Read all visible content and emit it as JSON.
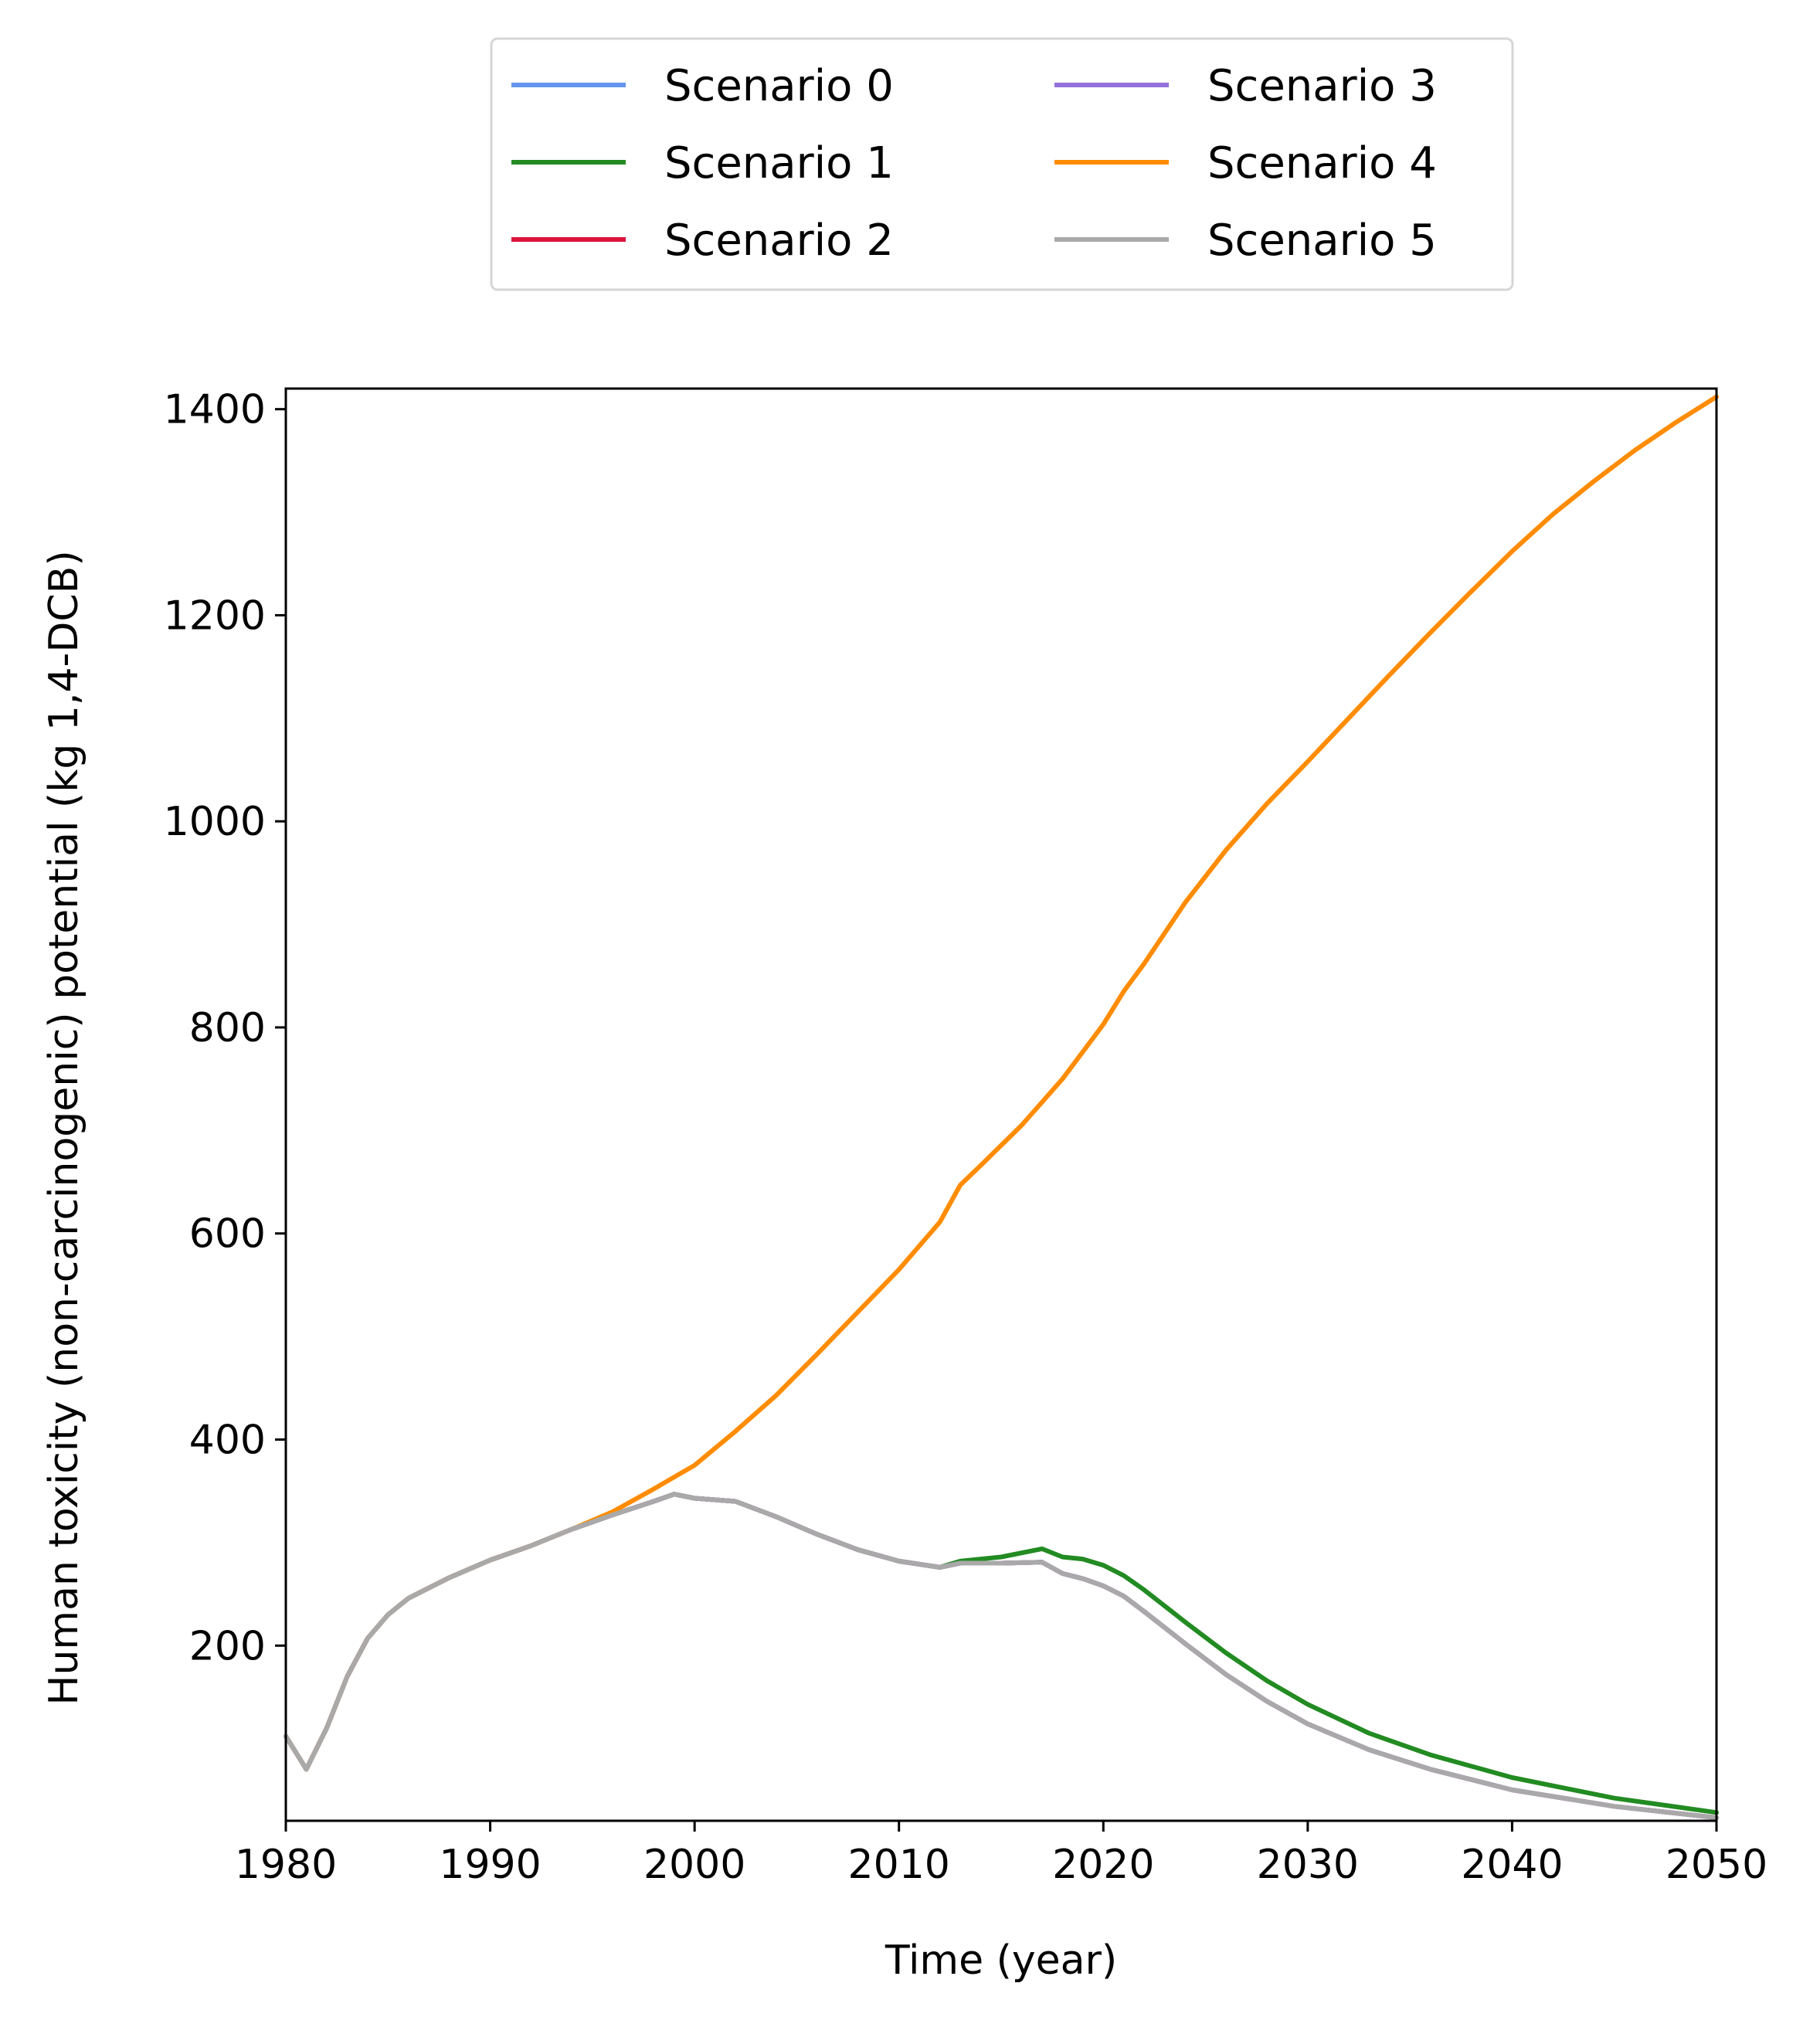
{
  "chart_data": {
    "type": "line",
    "title": "",
    "xlabel": "Time (year)",
    "ylabel": "Human toxicity (non-carcinogenic) potential (kg 1,4-DCB)",
    "xlim": [
      1980,
      2050
    ],
    "ylim": [
      30,
      1420
    ],
    "xticks": [
      1980,
      1990,
      2000,
      2010,
      2020,
      2030,
      2040,
      2050
    ],
    "yticks": [
      200,
      400,
      600,
      800,
      1000,
      1200,
      1400
    ],
    "grid": false,
    "legend": "top-center, outside plot, 2 columns",
    "series": [
      {
        "name": "Scenario 0",
        "color": "#6495ED",
        "x": [
          1980,
          1981,
          1982,
          1983,
          1984,
          1985,
          1986,
          1988,
          1990,
          1992,
          1994,
          1996,
          1998,
          1999,
          2000,
          2002,
          2004,
          2006,
          2008,
          2010,
          2012,
          2013,
          2015,
          2017,
          2018,
          2019,
          2020,
          2021,
          2022,
          2024,
          2026,
          2028,
          2030,
          2033,
          2036,
          2040,
          2045,
          2050
        ],
        "y": [
          112,
          80,
          120,
          170,
          207,
          230,
          246,
          266,
          283,
          297,
          313,
          327,
          340,
          347,
          343,
          340,
          325,
          308,
          293,
          282,
          276,
          280,
          280,
          281,
          270,
          265,
          258,
          248,
          233,
          202,
          172,
          146,
          124,
          99,
          80,
          60,
          44,
          33
        ]
      },
      {
        "name": "Scenario 1",
        "color": "#228B22",
        "x": [
          1980,
          1981,
          1982,
          1983,
          1984,
          1985,
          1986,
          1988,
          1990,
          1992,
          1994,
          1996,
          1998,
          1999,
          2000,
          2002,
          2004,
          2006,
          2008,
          2010,
          2012,
          2013,
          2015,
          2017,
          2018,
          2019,
          2020,
          2021,
          2022,
          2024,
          2026,
          2028,
          2030,
          2033,
          2036,
          2040,
          2045,
          2050
        ],
        "y": [
          112,
          80,
          120,
          170,
          207,
          230,
          246,
          266,
          283,
          297,
          313,
          327,
          340,
          347,
          343,
          340,
          325,
          308,
          293,
          282,
          276,
          282,
          286,
          294,
          286,
          284,
          278,
          268,
          254,
          223,
          193,
          166,
          143,
          115,
          94,
          72,
          52,
          38
        ]
      },
      {
        "name": "Scenario 2",
        "color": "#DC143C",
        "x": [
          1980,
          1981,
          1982,
          1983,
          1984,
          1985,
          1986,
          1988,
          1990,
          1992,
          1994,
          1996,
          1998,
          1999,
          2000,
          2002,
          2004,
          2006,
          2008,
          2010,
          2012,
          2013,
          2015,
          2017,
          2018,
          2019,
          2020,
          2021,
          2022,
          2024,
          2026,
          2028,
          2030,
          2033,
          2036,
          2040,
          2045,
          2050
        ],
        "y": [
          112,
          80,
          120,
          170,
          207,
          230,
          246,
          266,
          283,
          297,
          313,
          327,
          340,
          347,
          343,
          340,
          325,
          308,
          293,
          282,
          276,
          280,
          280,
          281,
          270,
          265,
          258,
          248,
          233,
          202,
          172,
          146,
          124,
          99,
          80,
          60,
          44,
          33
        ]
      },
      {
        "name": "Scenario 3",
        "color": "#9370DB",
        "x": [
          1980,
          1981,
          1982,
          1983,
          1984,
          1985,
          1986,
          1988,
          1990,
          1992,
          1994,
          1996,
          1998,
          1999,
          2000,
          2002,
          2004,
          2006,
          2008,
          2010,
          2012,
          2013,
          2015,
          2017,
          2018,
          2019,
          2020,
          2021,
          2022,
          2024,
          2026,
          2028,
          2030,
          2033,
          2036,
          2040,
          2045,
          2050
        ],
        "y": [
          112,
          80,
          120,
          170,
          207,
          230,
          246,
          266,
          283,
          297,
          313,
          327,
          340,
          347,
          343,
          340,
          325,
          308,
          293,
          282,
          276,
          280,
          280,
          281,
          270,
          265,
          258,
          248,
          233,
          202,
          172,
          146,
          124,
          99,
          80,
          60,
          44,
          33
        ]
      },
      {
        "name": "Scenario 4",
        "color": "#FF8C00",
        "x": [
          1980,
          1981,
          1982,
          1983,
          1984,
          1985,
          1986,
          1988,
          1990,
          1992,
          1994,
          1996,
          1998,
          2000,
          2002,
          2004,
          2006,
          2008,
          2010,
          2012,
          2013,
          2014,
          2016,
          2018,
          2020,
          2021,
          2022,
          2024,
          2026,
          2028,
          2030,
          2032,
          2034,
          2036,
          2038,
          2040,
          2042,
          2044,
          2046,
          2048,
          2050
        ],
        "y": [
          112,
          80,
          120,
          170,
          207,
          230,
          246,
          266,
          283,
          297,
          313,
          330,
          352,
          375,
          408,
          443,
          483,
          524,
          565,
          611,
          647,
          666,
          705,
          750,
          803,
          835,
          862,
          921,
          972,
          1017,
          1058,
          1100,
          1142,
          1183,
          1223,
          1262,
          1298,
          1330,
          1360,
          1387,
          1412
        ]
      },
      {
        "name": "Scenario 5",
        "color": "#A9A9A9",
        "x": [
          1980,
          1981,
          1982,
          1983,
          1984,
          1985,
          1986,
          1988,
          1990,
          1992,
          1994,
          1996,
          1998,
          1999,
          2000,
          2002,
          2004,
          2006,
          2008,
          2010,
          2012,
          2013,
          2015,
          2017,
          2018,
          2019,
          2020,
          2021,
          2022,
          2024,
          2026,
          2028,
          2030,
          2033,
          2036,
          2040,
          2045,
          2050
        ],
        "y": [
          112,
          80,
          120,
          170,
          207,
          230,
          246,
          266,
          283,
          297,
          313,
          327,
          340,
          347,
          343,
          340,
          325,
          308,
          293,
          282,
          276,
          280,
          280,
          281,
          270,
          265,
          258,
          248,
          233,
          202,
          172,
          146,
          124,
          99,
          80,
          60,
          44,
          33
        ]
      }
    ]
  }
}
